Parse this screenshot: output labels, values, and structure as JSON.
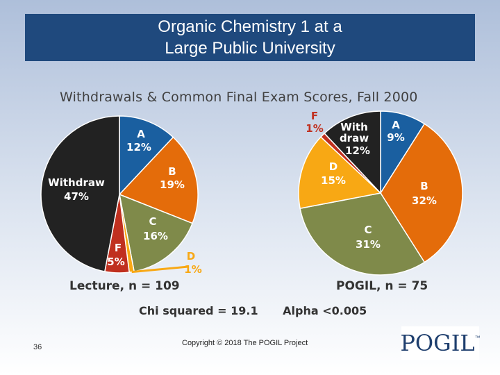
{
  "slide": {
    "title_line1": "Organic Chemistry 1 at a",
    "title_line2": "Large Public University",
    "subtitle": "Withdrawals & Common Final Exam Scores, Fall 2000",
    "page_number": "36",
    "copyright": "Copyright © 2018 The POGIL Project",
    "logo_text": "POGIL",
    "logo_tm": "™",
    "stats": {
      "chi": "Chi squared = 19.1",
      "alpha": "Alpha <0.005"
    }
  },
  "chart_data": [
    {
      "type": "pie",
      "name": "Lecture",
      "caption": "Lecture, n = 109",
      "slices": [
        {
          "label": "A",
          "value": 12,
          "text": "12%",
          "color": "#1a5fa0"
        },
        {
          "label": "B",
          "value": 19,
          "text": "19%",
          "color": "#e46c0a"
        },
        {
          "label": "C",
          "value": 16,
          "text": "16%",
          "color": "#7f8a4a"
        },
        {
          "label": "D",
          "value": 1,
          "text": "1%",
          "color": "#f8a814"
        },
        {
          "label": "F",
          "value": 5,
          "text": "5%",
          "color": "#c0301f"
        },
        {
          "label": "Withdraw",
          "value": 47,
          "text": "47%",
          "color": "#222222"
        }
      ]
    },
    {
      "type": "pie",
      "name": "POGIL",
      "caption": "POGIL, n = 75",
      "slices": [
        {
          "label": "A",
          "value": 9,
          "text": "9%",
          "color": "#1a5fa0"
        },
        {
          "label": "B",
          "value": 32,
          "text": "32%",
          "color": "#e46c0a"
        },
        {
          "label": "C",
          "value": 31,
          "text": "31%",
          "color": "#7f8a4a"
        },
        {
          "label": "D",
          "value": 15,
          "text": "15%",
          "color": "#f8a814"
        },
        {
          "label": "F",
          "value": 1,
          "text": "1%",
          "color": "#c0301f"
        },
        {
          "label": "With draw",
          "label_lines": [
            "With",
            "draw"
          ],
          "value": 12,
          "text": "12%",
          "color": "#222222"
        }
      ]
    }
  ]
}
